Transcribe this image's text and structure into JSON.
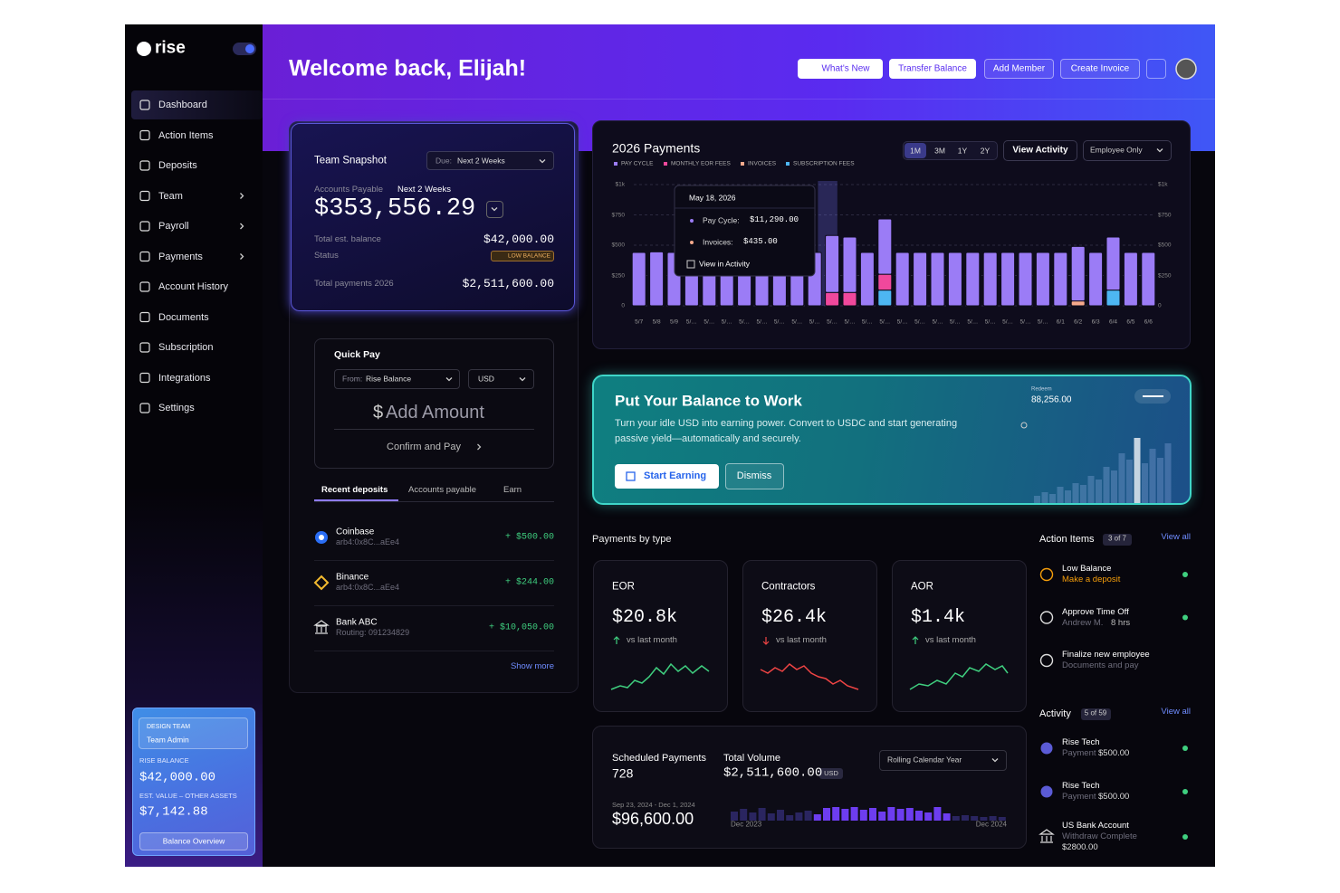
{
  "sidebar": {
    "logo": "rise",
    "nav": [
      "Dashboard",
      "Action Items",
      "Deposits",
      "Team",
      "Payroll",
      "Payments",
      "Account History",
      "Documents",
      "Subscription",
      "Integrations",
      "Settings"
    ],
    "team_card": {
      "team": "DESIGN TEAM",
      "role": "Team Admin",
      "balance_label": "RISE BALANCE",
      "balance": "$42,000.00",
      "other_label": "EST. VALUE – OTHER ASSETS",
      "other": "$7,142.88",
      "button": "Balance Overview"
    }
  },
  "header": {
    "title": "Welcome back, Elijah!",
    "buttons": [
      "What's New",
      "Transfer Balance",
      "Add Member",
      "Create Invoice"
    ]
  },
  "snapshot": {
    "title": "Team Snapshot",
    "due_label": "Due:",
    "due": "Next 2 Weeks",
    "ap_label": "Accounts Payable",
    "ap_period": "Next 2 Weeks",
    "amount": "$353,556.29",
    "balance_label": "Total est. balance",
    "balance": "$42,000.00",
    "status_label": "Status",
    "status": "LOW BALANCE",
    "total_label": "Total payments 2026",
    "total": "$2,511,600.00"
  },
  "quick_pay": {
    "title": "Quick Pay",
    "from_label": "From:",
    "from": "Rise Balance",
    "currency": "USD",
    "symbol": "$",
    "add": "Add Amount",
    "confirm": "Confirm and Pay"
  },
  "deposits": {
    "tabs": [
      "Recent deposits",
      "Accounts payable",
      "Earn"
    ],
    "items": [
      {
        "name": "Coinbase",
        "detail": "arb4:0x8C...aEe4",
        "amount": "+ $500.00"
      },
      {
        "name": "Binance",
        "detail": "arb4:0x8C...aEe4",
        "amount": "+ $244.00"
      },
      {
        "name": "Bank ABC",
        "detail": "Routing: 091234829",
        "amount": "+ $10,050.00"
      }
    ],
    "more": "Show more"
  },
  "payments_chart": {
    "type": "bar",
    "title": "2026 Payments",
    "ranges": [
      "1M",
      "3M",
      "1Y",
      "2Y"
    ],
    "view": "View Activity",
    "filter": "Employee Only",
    "categories": [
      "5/7",
      "5/8",
      "5/9",
      "5/…",
      "5/…",
      "5/…",
      "5/…",
      "5/…",
      "5/…",
      "5/…",
      "5/…",
      "5/…",
      "5/…",
      "5/…",
      "5/…",
      "5/…",
      "5/…",
      "5/…",
      "5/…",
      "5/…",
      "5/…",
      "5/…",
      "5/…",
      "5/…",
      "6/1",
      "6/2",
      "6/3",
      "6/4",
      "6/5",
      "6/6"
    ],
    "series": [
      {
        "name": "PAY CYCLE",
        "color": "#9b7cf6",
        "values": [
          440,
          445,
          440,
          440,
          442,
          440,
          440,
          440,
          440,
          440,
          440,
          470,
          457,
          440,
          456,
          440,
          440,
          440,
          440,
          440,
          440,
          440,
          440,
          440,
          440,
          450,
          440,
          437,
          440,
          440
        ]
      },
      {
        "name": "MONTHLY EOR FEES",
        "color": "#f0489c",
        "values": [
          0,
          0,
          0,
          0,
          0,
          0,
          0,
          0,
          0,
          0,
          0,
          110,
          110,
          0,
          130,
          0,
          0,
          0,
          0,
          0,
          0,
          0,
          0,
          0,
          0,
          0,
          0,
          0,
          0,
          0
        ]
      },
      {
        "name": "INVOICES",
        "color": "#f6a98c",
        "values": [
          0,
          0,
          0,
          0,
          0,
          0,
          0,
          0,
          0,
          0,
          0,
          0,
          0,
          0,
          0,
          0,
          0,
          0,
          0,
          0,
          0,
          0,
          0,
          0,
          0,
          40,
          0,
          0,
          0,
          0
        ]
      },
      {
        "name": "SUBSCRIPTION FEES",
        "color": "#4db6f2",
        "values": [
          0,
          0,
          0,
          0,
          0,
          0,
          0,
          0,
          0,
          0,
          0,
          0,
          0,
          0,
          130,
          0,
          0,
          0,
          0,
          0,
          0,
          0,
          0,
          0,
          0,
          0,
          0,
          130,
          0,
          0
        ]
      }
    ],
    "ylim": [
      0,
      1000
    ],
    "yticks": [
      {
        "value": 1000,
        "label": "$1k"
      },
      {
        "value": 750,
        "label": "$750"
      },
      {
        "value": 500,
        "label": "$500"
      },
      {
        "value": 250,
        "label": "$250"
      },
      0
    ],
    "grid": true,
    "tooltip": {
      "date": "May 18, 2026",
      "rows": [
        {
          "label": "Pay Cycle:",
          "value": "$11,290.00"
        },
        {
          "label": "Invoices:",
          "value": "$435.00"
        }
      ],
      "link": "View in Activity"
    }
  },
  "promo": {
    "title": "Put Your Balance to Work",
    "text": [
      "Turn your idle USD into earning power. Convert to USDC and start generating",
      "passive yield—automatically and securely."
    ],
    "primary": "Start Earning",
    "secondary": "Dismiss",
    "label": "Redeem",
    "amount": "88,256.00"
  },
  "payments_by_type": {
    "title": "Payments by type",
    "cards": [
      {
        "name": "EOR",
        "amount": "$20.8k",
        "trend": "vs last month"
      },
      {
        "name": "Contractors",
        "amount": "$26.4k",
        "trend": "vs last month"
      },
      {
        "name": "AOR",
        "amount": "$1.4k",
        "trend": "vs last month"
      }
    ]
  },
  "action_items": {
    "title": "Action Items",
    "count": "3 of 7",
    "view_all": "View all",
    "items": [
      {
        "title": "Low Balance",
        "detail": "Make a deposit"
      },
      {
        "title": "Approve Time Off",
        "detail": "Andrew M.",
        "extra": "8 hrs"
      },
      {
        "title": "Finalize new employee",
        "detail": "Documents and pay"
      }
    ]
  },
  "activity": {
    "title": "Activity",
    "count": "5 of 59",
    "view_all": "View all",
    "items": [
      {
        "title": "Rise Tech",
        "detail": "Payment",
        "amount": "$500.00"
      },
      {
        "title": "Rise Tech",
        "detail": "Payment",
        "amount": "$500.00"
      },
      {
        "title": "US Bank Account",
        "detail": "Withdraw Complete",
        "amount": "$2800.00"
      }
    ]
  },
  "scheduled": {
    "count_label": "Scheduled Payments",
    "count": "728",
    "volume_label": "Total Volume",
    "volume": "$2,511,600.00",
    "currency": "USD",
    "period_select": "Rolling Calendar Year",
    "range": "Sep 23, 2024 - Dec 1, 2024",
    "range_amount": "$96,600.00",
    "start": "Dec 2023",
    "end": "Dec 2024"
  }
}
